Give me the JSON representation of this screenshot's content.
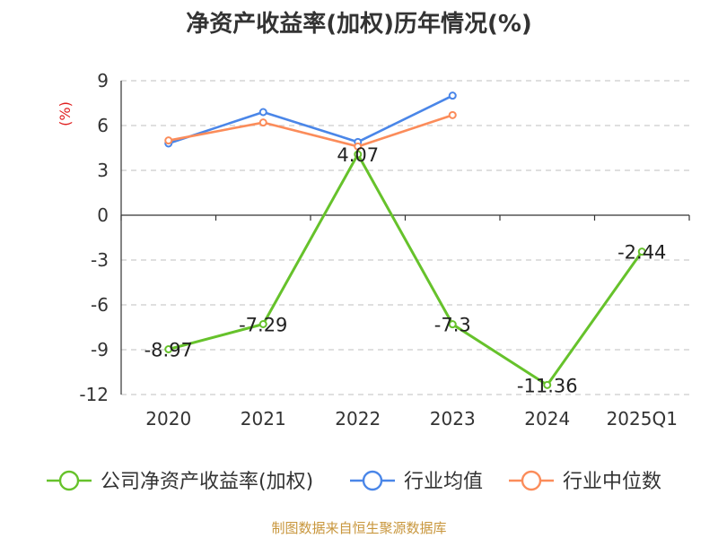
{
  "chart_data": {
    "type": "line",
    "title": "净资产收益率(加权)历年情况(%)",
    "ylabel": "(%)",
    "categories": [
      "2020",
      "2021",
      "2022",
      "2023",
      "2024",
      "2025Q1"
    ],
    "ylim": [
      -12,
      9
    ],
    "yticks": [
      9,
      6,
      3,
      0,
      -3,
      -6,
      -9,
      -12
    ],
    "grid": true,
    "legend_position": "bottom",
    "series": [
      {
        "name": "公司净资产收益率(加权)",
        "color": "#66c22b",
        "values": [
          -8.97,
          -7.29,
          4.07,
          -7.3,
          -11.36,
          -2.44
        ],
        "labels": [
          "-8.97",
          "-7.29",
          "4.07",
          "-7.3",
          "-11.36",
          "-2.44"
        ]
      },
      {
        "name": "行业均值",
        "color": "#4a86e8",
        "values": [
          4.8,
          6.9,
          4.9,
          8.0,
          null,
          null
        ]
      },
      {
        "name": "行业中位数",
        "color": "#fb8c5a",
        "values": [
          5.0,
          6.2,
          4.6,
          6.7,
          null,
          null
        ]
      }
    ]
  },
  "source": "制图数据来自恒生聚源数据库"
}
